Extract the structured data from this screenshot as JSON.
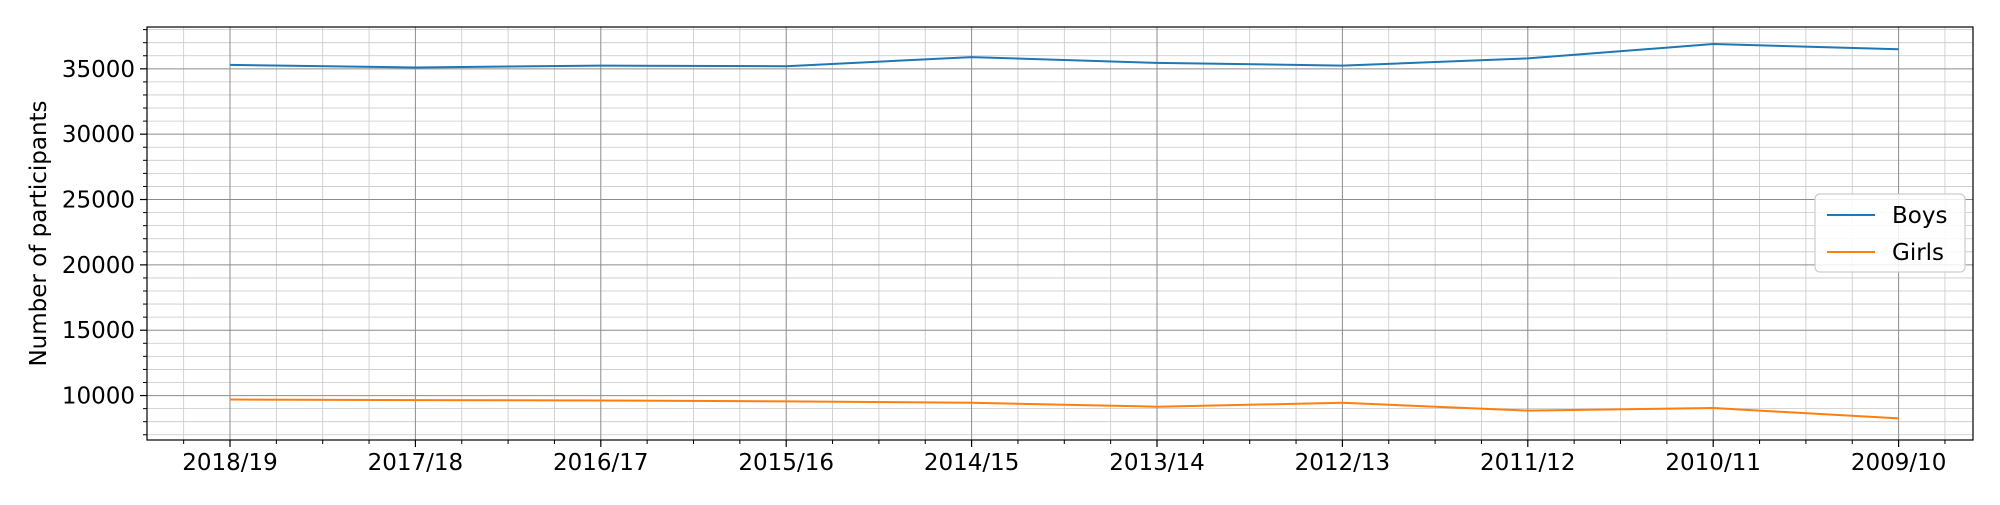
{
  "chart_data": {
    "type": "line",
    "categories": [
      "2018/19",
      "2017/18",
      "2016/17",
      "2015/16",
      "2014/15",
      "2013/14",
      "2012/13",
      "2011/12",
      "2010/11",
      "2009/10"
    ],
    "series": [
      {
        "name": "Boys",
        "color": "#1f77b4",
        "values": [
          35300,
          35100,
          35250,
          35200,
          35900,
          35450,
          35250,
          35800,
          36900,
          36500
        ]
      },
      {
        "name": "Girls",
        "color": "#ff7f0e",
        "values": [
          9700,
          9650,
          9620,
          9550,
          9450,
          9150,
          9450,
          8850,
          9050,
          8250
        ]
      }
    ],
    "title": "",
    "xlabel": "",
    "ylabel": "Number of participants",
    "ylim": [
      6600,
      38200
    ],
    "y_ticks": [
      "10000",
      "15000",
      "20000",
      "25000",
      "30000",
      "35000"
    ],
    "grid": "major and minor",
    "legend_position": "center-right"
  }
}
